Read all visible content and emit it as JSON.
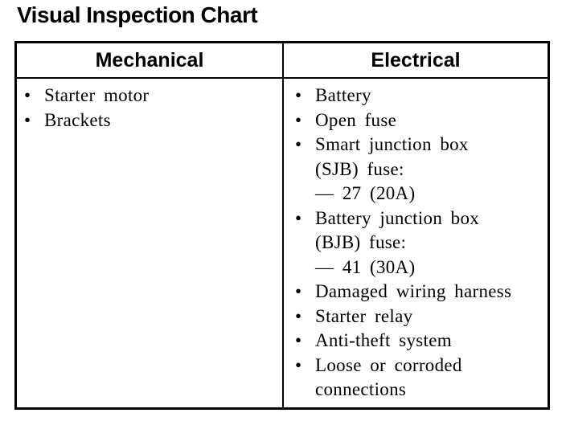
{
  "title": "Visual Inspection Chart",
  "icons": {
    "bullet": "•"
  },
  "colors": {
    "ink": "#000000",
    "paper": "#ffffff"
  },
  "table": {
    "headers": [
      "Mechanical",
      "Electrical"
    ],
    "mechanical": {
      "items": [
        {
          "lines": [
            "Starter motor"
          ]
        },
        {
          "lines": [
            "Brackets"
          ]
        }
      ]
    },
    "electrical": {
      "items": [
        {
          "lines": [
            "Battery"
          ]
        },
        {
          "lines": [
            "Open fuse"
          ]
        },
        {
          "lines": [
            "Smart junction box",
            "(SJB) fuse:",
            "— 27 (20A)"
          ]
        },
        {
          "lines": [
            "Battery junction box",
            "(BJB) fuse:",
            "— 41 (30A)"
          ]
        },
        {
          "lines": [
            "Damaged wiring harness"
          ]
        },
        {
          "lines": [
            "Starter relay"
          ]
        },
        {
          "lines": [
            "Anti-theft system"
          ]
        },
        {
          "lines": [
            "Loose or corroded",
            "connections"
          ]
        }
      ]
    }
  }
}
